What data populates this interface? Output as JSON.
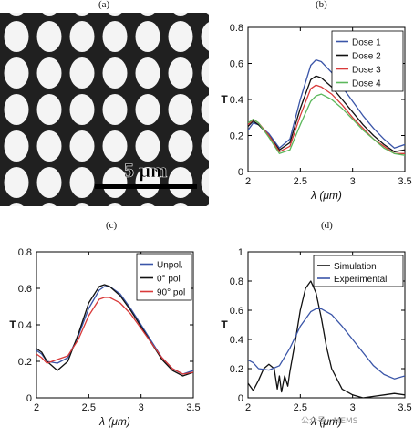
{
  "panels": {
    "a": {
      "label": "(a)",
      "scale_bar_text": "5 μm"
    },
    "b": {
      "label": "(b)"
    },
    "c": {
      "label": "(c)"
    },
    "d": {
      "label": "(d)"
    }
  },
  "watermark": "公众号 · MEMS",
  "chart_data": [
    {
      "id": "b",
      "type": "line",
      "title": "",
      "xlabel": "λ (μm)",
      "ylabel": "T",
      "xlim": [
        2,
        3.5
      ],
      "ylim": [
        0,
        0.8
      ],
      "xticks": [
        2,
        2.5,
        3,
        3.5
      ],
      "yticks": [
        0,
        0.2,
        0.4,
        0.6,
        0.8
      ],
      "legend": "top-right",
      "series": [
        {
          "name": "Dose 1",
          "color": "#3a55a8",
          "x": [
            2,
            2.05,
            2.1,
            2.2,
            2.3,
            2.4,
            2.5,
            2.6,
            2.65,
            2.7,
            2.8,
            2.9,
            3.0,
            3.1,
            3.2,
            3.3,
            3.4,
            3.5
          ],
          "y": [
            0.23,
            0.27,
            0.26,
            0.21,
            0.13,
            0.18,
            0.4,
            0.59,
            0.62,
            0.61,
            0.55,
            0.47,
            0.39,
            0.31,
            0.24,
            0.18,
            0.13,
            0.15
          ]
        },
        {
          "name": "Dose 2",
          "color": "#111111",
          "x": [
            2,
            2.05,
            2.1,
            2.2,
            2.3,
            2.4,
            2.5,
            2.6,
            2.65,
            2.7,
            2.8,
            2.9,
            3.0,
            3.1,
            3.2,
            3.3,
            3.4,
            3.5
          ],
          "y": [
            0.25,
            0.28,
            0.26,
            0.2,
            0.12,
            0.16,
            0.35,
            0.51,
            0.53,
            0.52,
            0.47,
            0.4,
            0.33,
            0.26,
            0.2,
            0.15,
            0.11,
            0.12
          ]
        },
        {
          "name": "Dose 3",
          "color": "#d93a3a",
          "x": [
            2,
            2.05,
            2.1,
            2.2,
            2.3,
            2.4,
            2.5,
            2.6,
            2.65,
            2.7,
            2.8,
            2.9,
            3.0,
            3.1,
            3.2,
            3.3,
            3.4,
            3.5
          ],
          "y": [
            0.26,
            0.29,
            0.27,
            0.2,
            0.11,
            0.14,
            0.31,
            0.46,
            0.48,
            0.47,
            0.43,
            0.37,
            0.3,
            0.24,
            0.18,
            0.14,
            0.1,
            0.1
          ]
        },
        {
          "name": "Dose 4",
          "color": "#5cb85c",
          "x": [
            2,
            2.05,
            2.1,
            2.2,
            2.3,
            2.4,
            2.5,
            2.6,
            2.65,
            2.7,
            2.8,
            2.9,
            3.0,
            3.1,
            3.2,
            3.3,
            3.4,
            3.5
          ],
          "y": [
            0.27,
            0.29,
            0.27,
            0.19,
            0.1,
            0.12,
            0.26,
            0.39,
            0.42,
            0.43,
            0.4,
            0.35,
            0.29,
            0.23,
            0.18,
            0.13,
            0.1,
            0.09
          ]
        }
      ]
    },
    {
      "id": "c",
      "type": "line",
      "title": "",
      "xlabel": "λ (μm)",
      "ylabel": "T",
      "xlim": [
        2,
        3.5
      ],
      "ylim": [
        0,
        0.8
      ],
      "xticks": [
        2,
        2.5,
        3,
        3.5
      ],
      "yticks": [
        0,
        0.2,
        0.4,
        0.6,
        0.8
      ],
      "legend": "top-right",
      "series": [
        {
          "name": "Unpol.",
          "color": "#3a55a8",
          "x": [
            2,
            2.05,
            2.1,
            2.2,
            2.3,
            2.4,
            2.5,
            2.6,
            2.65,
            2.7,
            2.8,
            2.9,
            3.0,
            3.1,
            3.2,
            3.3,
            3.4,
            3.5
          ],
          "y": [
            0.26,
            0.24,
            0.2,
            0.19,
            0.22,
            0.34,
            0.49,
            0.59,
            0.61,
            0.61,
            0.57,
            0.49,
            0.4,
            0.31,
            0.22,
            0.16,
            0.13,
            0.15
          ]
        },
        {
          "name": "0° pol",
          "color": "#111111",
          "x": [
            2,
            2.05,
            2.1,
            2.2,
            2.3,
            2.4,
            2.5,
            2.6,
            2.65,
            2.7,
            2.8,
            2.9,
            3.0,
            3.1,
            3.2,
            3.3,
            3.4,
            3.5
          ],
          "y": [
            0.27,
            0.25,
            0.2,
            0.15,
            0.2,
            0.35,
            0.52,
            0.61,
            0.62,
            0.61,
            0.56,
            0.48,
            0.39,
            0.3,
            0.21,
            0.15,
            0.12,
            0.14
          ]
        },
        {
          "name": "90° pol",
          "color": "#d93a3a",
          "x": [
            2,
            2.05,
            2.1,
            2.2,
            2.3,
            2.4,
            2.5,
            2.6,
            2.65,
            2.7,
            2.8,
            2.9,
            3.0,
            3.1,
            3.2,
            3.3,
            3.4,
            3.5
          ],
          "y": [
            0.24,
            0.22,
            0.19,
            0.21,
            0.23,
            0.32,
            0.45,
            0.54,
            0.55,
            0.55,
            0.52,
            0.46,
            0.38,
            0.3,
            0.22,
            0.16,
            0.13,
            0.14
          ]
        }
      ]
    },
    {
      "id": "d",
      "type": "line",
      "title": "",
      "xlabel": "λ (μm)",
      "ylabel": "T",
      "xlim": [
        2,
        3.5
      ],
      "ylim": [
        0,
        1
      ],
      "xticks": [
        2,
        2.5,
        3,
        3.5
      ],
      "yticks": [
        0,
        0.2,
        0.4,
        0.6,
        0.8,
        1
      ],
      "legend": "top-right",
      "series": [
        {
          "name": "Simulation",
          "color": "#111111",
          "x": [
            2,
            2.05,
            2.1,
            2.15,
            2.2,
            2.25,
            2.28,
            2.3,
            2.32,
            2.35,
            2.38,
            2.4,
            2.45,
            2.5,
            2.55,
            2.6,
            2.65,
            2.7,
            2.75,
            2.8,
            2.9,
            3.0,
            3.1,
            3.2,
            3.3,
            3.4,
            3.5
          ],
          "y": [
            0.1,
            0.05,
            0.12,
            0.2,
            0.23,
            0.2,
            0.06,
            0.15,
            0.04,
            0.15,
            0.08,
            0.18,
            0.38,
            0.6,
            0.75,
            0.8,
            0.72,
            0.55,
            0.35,
            0.2,
            0.06,
            0.02,
            0.0,
            0.01,
            0.02,
            0.03,
            0.02
          ]
        },
        {
          "name": "Experimental",
          "color": "#3a55a8",
          "x": [
            2,
            2.05,
            2.1,
            2.2,
            2.3,
            2.4,
            2.5,
            2.6,
            2.65,
            2.7,
            2.8,
            2.9,
            3.0,
            3.1,
            3.2,
            3.3,
            3.4,
            3.5
          ],
          "y": [
            0.26,
            0.24,
            0.2,
            0.19,
            0.22,
            0.34,
            0.49,
            0.59,
            0.61,
            0.61,
            0.57,
            0.49,
            0.4,
            0.31,
            0.22,
            0.16,
            0.13,
            0.15
          ]
        }
      ]
    }
  ]
}
